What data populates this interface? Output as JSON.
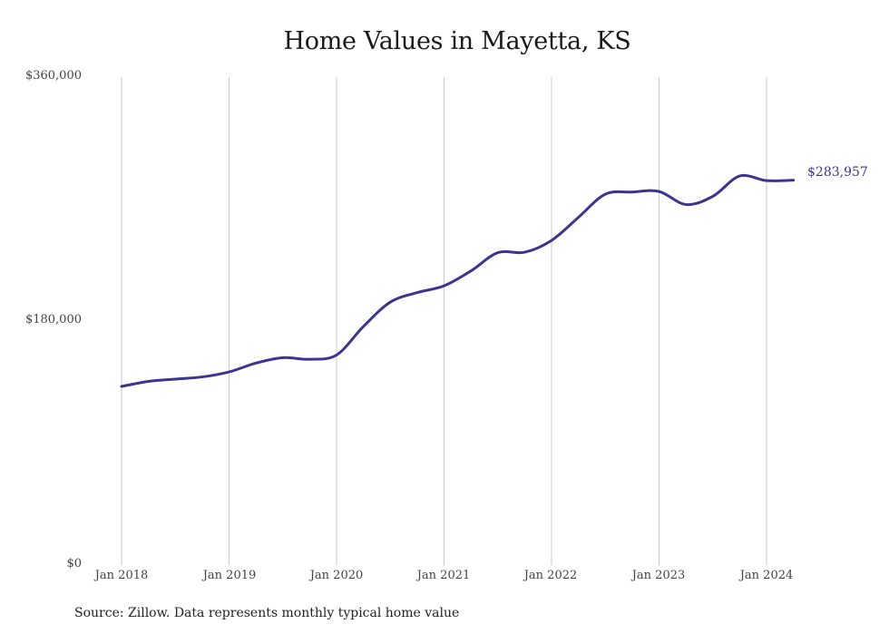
{
  "chart_data": {
    "type": "line",
    "title": "Home Values in Mayetta, KS",
    "xlabel": "",
    "ylabel": "",
    "ylim": [
      0,
      360000
    ],
    "y_ticks": [
      "$0",
      "$180,000",
      "$360,000"
    ],
    "x_ticks": [
      "Jan 2018",
      "Jan 2019",
      "Jan 2020",
      "Jan 2021",
      "Jan 2022",
      "Jan 2023",
      "Jan 2024"
    ],
    "grid": "vertical",
    "legend": "none",
    "line_color": "#3b3591",
    "end_label": "$283,957",
    "series": [
      {
        "name": "Typical home value",
        "x": [
          "2018-01",
          "2018-04",
          "2018-07",
          "2018-10",
          "2019-01",
          "2019-04",
          "2019-07",
          "2019-10",
          "2020-01",
          "2020-04",
          "2020-07",
          "2020-10",
          "2021-01",
          "2021-04",
          "2021-07",
          "2021-10",
          "2022-01",
          "2022-04",
          "2022-07",
          "2022-10",
          "2023-01",
          "2023-04",
          "2023-07",
          "2023-10",
          "2024-01",
          "2024-04"
        ],
        "values": [
          131800,
          135500,
          137200,
          138800,
          142500,
          149000,
          153000,
          151800,
          155000,
          176000,
          194000,
          201000,
          206000,
          217000,
          230500,
          230800,
          239500,
          256500,
          273600,
          275200,
          275600,
          266000,
          272000,
          287000,
          283600,
          283957
        ]
      }
    ]
  },
  "source_note": "Source: Zillow. Data represents monthly typical home value"
}
